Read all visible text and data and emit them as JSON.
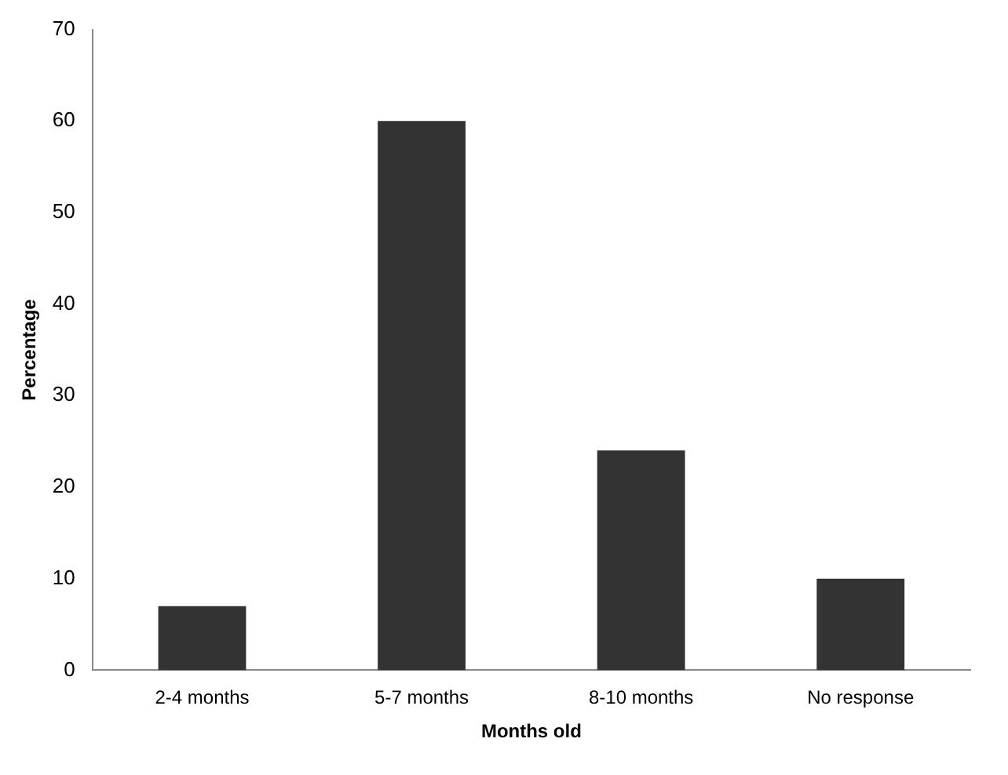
{
  "chart_data": {
    "type": "bar",
    "xlabel": "Months old",
    "ylabel": "Percentage",
    "categories": [
      "2-4 months",
      "5-7 months",
      "8-10 months",
      "No response"
    ],
    "values": [
      7,
      60,
      24,
      10
    ],
    "color": "#333333",
    "ylim": [
      0,
      70
    ],
    "yticks": [
      0,
      10,
      20,
      30,
      40,
      50,
      60,
      70
    ],
    "grid": false,
    "legend": false
  }
}
